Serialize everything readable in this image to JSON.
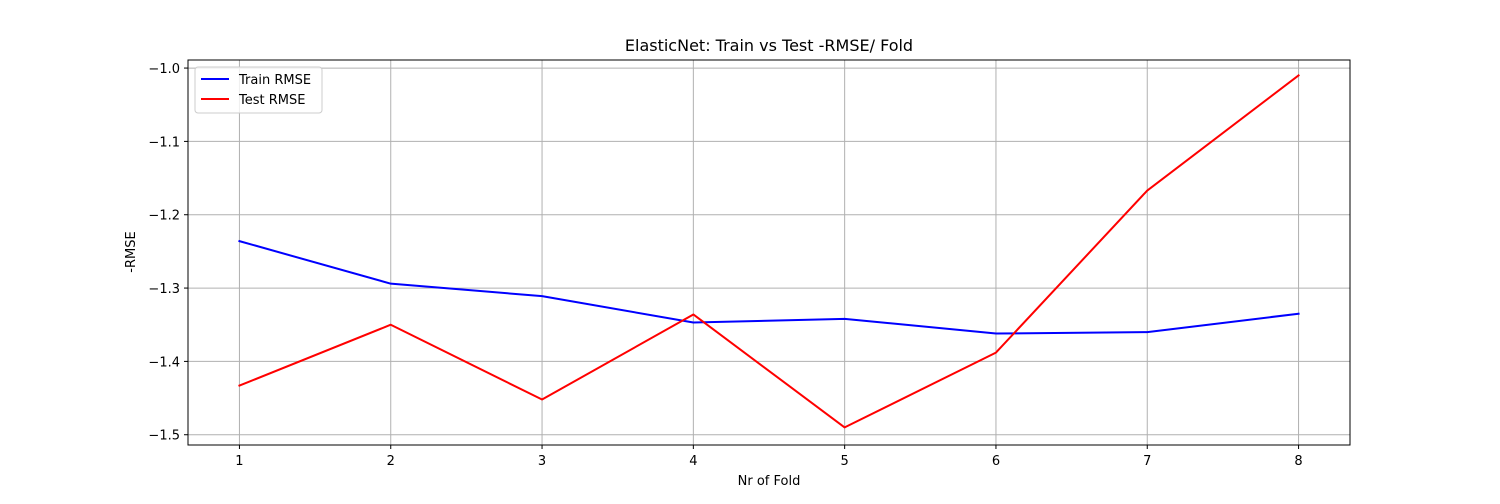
{
  "chart_data": {
    "type": "line",
    "title": "ElasticNet: Train vs Test -RMSE/ Fold",
    "xlabel": "Nr of Fold",
    "ylabel": "-RMSE",
    "x": [
      1,
      2,
      3,
      4,
      5,
      6,
      7,
      8
    ],
    "xlim": [
      0.66,
      8.34
    ],
    "ylim": [
      -1.514,
      -0.989
    ],
    "xticks": [
      1,
      2,
      3,
      4,
      5,
      6,
      7,
      8
    ],
    "yticks": [
      -1.5,
      -1.4,
      -1.3,
      -1.2,
      -1.1,
      -1.0
    ],
    "ytick_labels": [
      "−1.5",
      "−1.4",
      "−1.3",
      "−1.2",
      "−1.1",
      "−1.0"
    ],
    "grid": true,
    "legend_position": "top-left",
    "series": [
      {
        "name": "Train RMSE",
        "color": "#0000ff",
        "values": [
          -1.236,
          -1.294,
          -1.311,
          -1.347,
          -1.342,
          -1.362,
          -1.36,
          -1.335
        ]
      },
      {
        "name": "Test RMSE",
        "color": "#ff0000",
        "values": [
          -1.433,
          -1.35,
          -1.452,
          -1.336,
          -1.49,
          -1.388,
          -1.167,
          -1.01
        ]
      }
    ]
  }
}
